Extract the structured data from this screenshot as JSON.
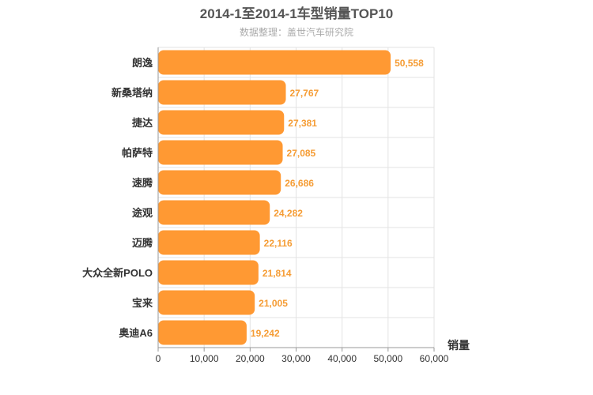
{
  "chart_data": {
    "type": "bar",
    "orientation": "horizontal",
    "title": "2014-1至2014-1车型销量TOP10",
    "subtitle": "数据整理：盖世汽车研究院",
    "categories": [
      "朗逸",
      "新桑塔纳",
      "捷达",
      "帕萨特",
      "速腾",
      "途观",
      "迈腾",
      "大众全新POLO",
      "宝来",
      "奥迪A6"
    ],
    "values": [
      50558,
      27767,
      27381,
      27085,
      26686,
      24282,
      22116,
      21814,
      21005,
      19242
    ],
    "value_labels": [
      "50,558",
      "27,767",
      "27,381",
      "27,085",
      "26,686",
      "24,282",
      "22,116",
      "21,814",
      "21,005",
      "19,242"
    ],
    "xlabel": "销量",
    "xlim": [
      0,
      60000
    ],
    "x_ticks": [
      0,
      10000,
      20000,
      30000,
      40000,
      50000,
      60000
    ],
    "x_tick_labels": [
      "0",
      "10,000",
      "20,000",
      "30,000",
      "40,000",
      "50,000",
      "60,000"
    ],
    "grid": true,
    "bar_color": "#ff9933"
  }
}
